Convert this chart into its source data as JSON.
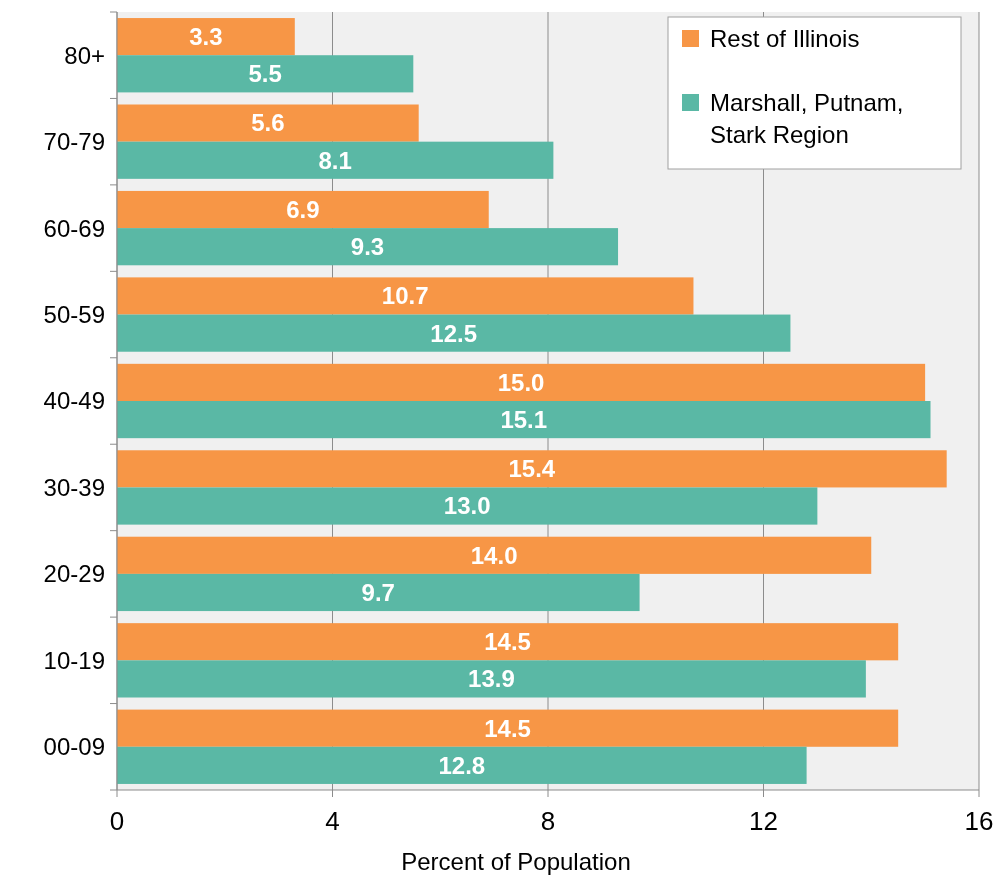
{
  "chart_data": {
    "type": "bar",
    "orientation": "horizontal",
    "xlabel": "Percent of Population",
    "categories": [
      "80+",
      "70-79",
      "60-69",
      "50-59",
      "40-49",
      "30-39",
      "20-29",
      "10-19",
      "00-09"
    ],
    "series": [
      {
        "name": "Rest of Illinois",
        "color": "#f79646",
        "values": [
          3.3,
          5.6,
          6.9,
          10.7,
          15.0,
          15.4,
          14.0,
          14.5,
          14.5
        ],
        "value_labels": [
          "3.3",
          "5.6",
          "6.9",
          "10.7",
          "15.0",
          "15.4",
          "14.0",
          "14.5",
          "14.5"
        ]
      },
      {
        "name": "Marshall, Putnam, Stark Region",
        "color": "#5ab8a5",
        "values": [
          5.5,
          8.1,
          9.3,
          12.5,
          15.1,
          13.0,
          9.7,
          13.9,
          12.8
        ],
        "value_labels": [
          "5.5",
          "8.1",
          "9.3",
          "12.5",
          "15.1",
          "13.0",
          "9.7",
          "13.9",
          "12.8"
        ]
      }
    ],
    "xlim": [
      0,
      16
    ],
    "xticks": [
      0,
      4,
      8,
      12,
      16
    ],
    "grid": "x",
    "legend": "top right"
  }
}
